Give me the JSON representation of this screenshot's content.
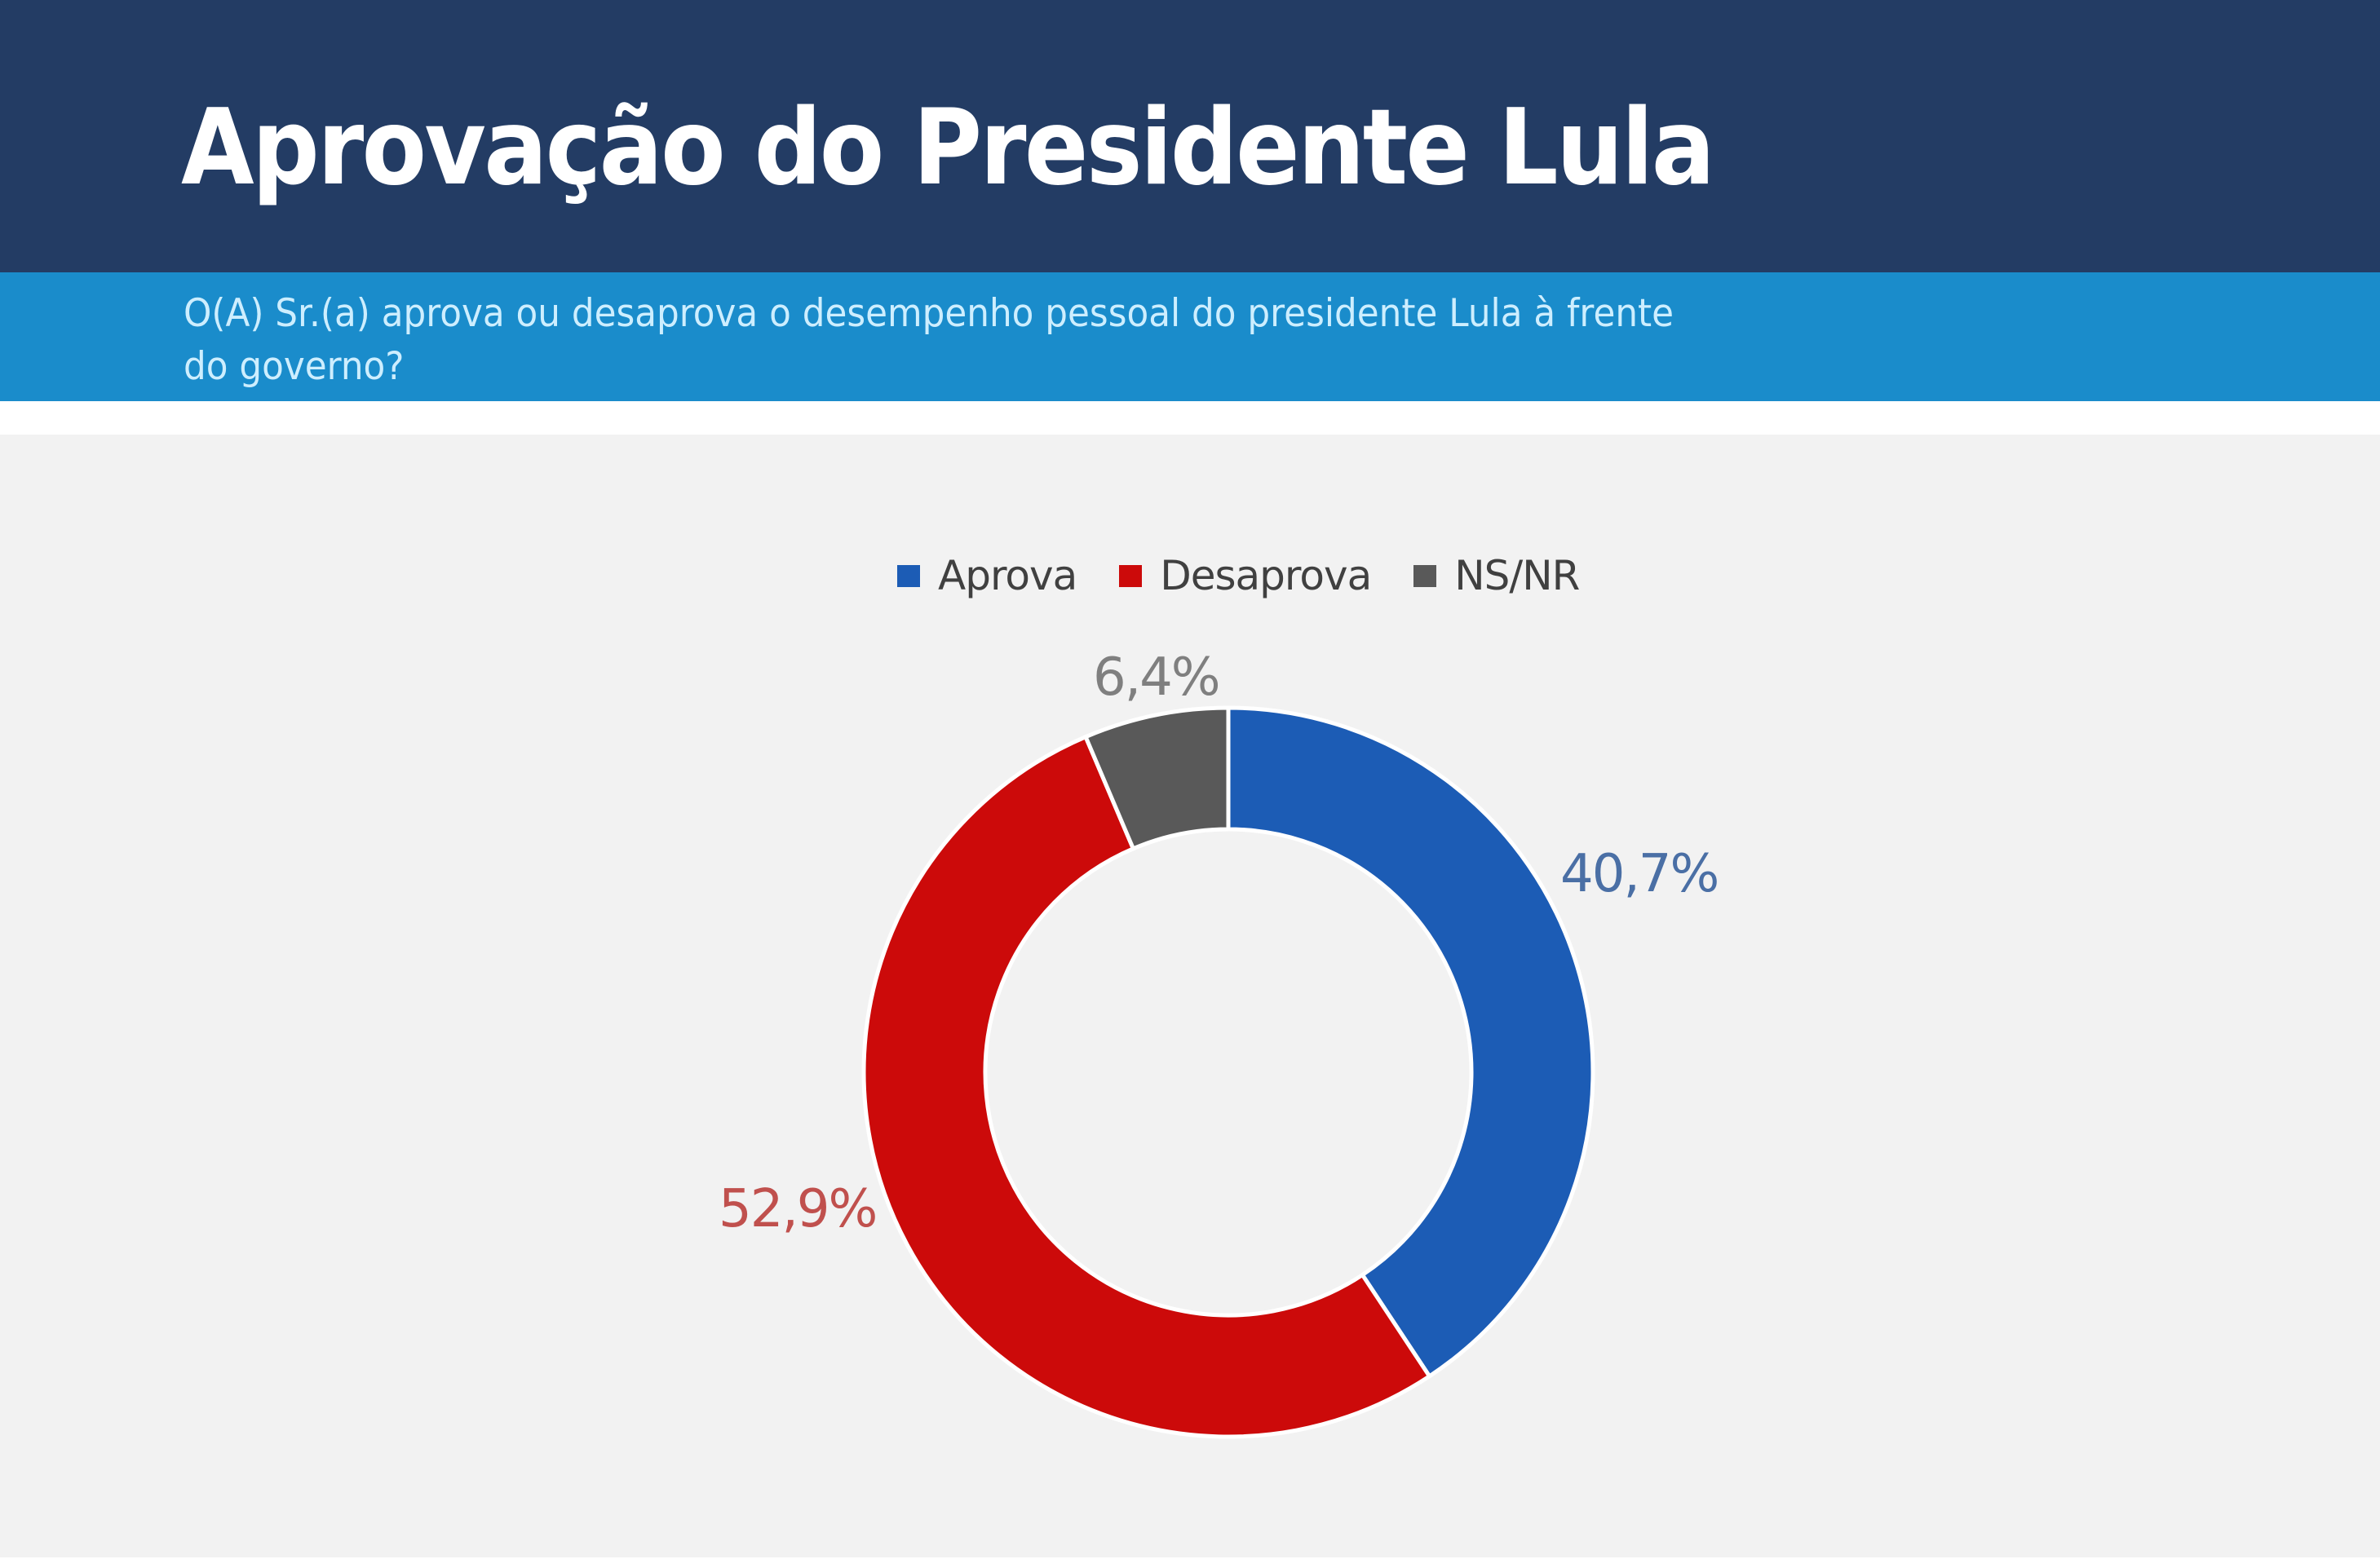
{
  "header": {
    "title": "Aprovação do Presidente Lula",
    "subtitle_line1": "O(A) Sr.(a) aprova ou desaprova o desempenho pessoal do presidente Lula à frente",
    "subtitle_line2": "do governo?"
  },
  "colors": {
    "header_bg": "#233c64",
    "subtitle_bg": "#1a8ccb",
    "subtitle_text": "#cdeeff",
    "chart_bg": "#f2f2f2",
    "aprova": "#1c5cb5",
    "desaprova": "#cc0a0a",
    "nsnr": "#595959",
    "label_aprova": "#4a6fa5",
    "label_desaprova": "#c0504d",
    "label_nsnr": "#7f7f7f"
  },
  "legend": {
    "items": [
      {
        "label": "Aprova",
        "color": "#1c5cb5"
      },
      {
        "label": "Desaprova",
        "color": "#cc0a0a"
      },
      {
        "label": "NS/NR",
        "color": "#595959"
      }
    ]
  },
  "chart_data": {
    "type": "pie",
    "variant": "donut",
    "title": "Aprovação do Presidente Lula",
    "subtitle": "O(A) Sr.(a) aprova ou desaprova o desempenho pessoal do presidente Lula à frente do governo?",
    "categories": [
      "Aprova",
      "Desaprova",
      "NS/NR"
    ],
    "values": [
      40.7,
      52.9,
      6.4
    ],
    "labels": [
      "40,7%",
      "52,9%",
      "6,4%"
    ],
    "colors": [
      "#1c5cb5",
      "#cc0a0a",
      "#595959"
    ],
    "unit": "%",
    "legend_position": "top",
    "start_angle_deg": 0,
    "direction": "clockwise"
  }
}
